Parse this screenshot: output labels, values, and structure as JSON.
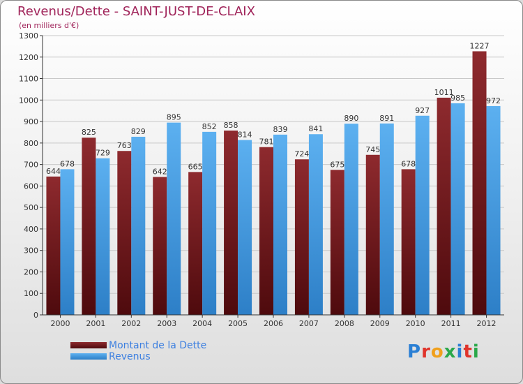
{
  "title": "Revenus/Dette - SAINT-JUST-DE-CLAIX",
  "subtitle": "(en milliers d'€)",
  "logo": "Proxiti",
  "colors": {
    "dette": "#7a1e22",
    "revenus": "#4aa3ea",
    "title": "#a0245a",
    "legend_text": "#3c7fe0"
  },
  "chart_data": {
    "type": "bar",
    "title": "Revenus/Dette - SAINT-JUST-DE-CLAIX",
    "ylabel": "(en milliers d'€)",
    "xlabel": "",
    "ylim": [
      0,
      1300
    ],
    "yticks": [
      0,
      100,
      200,
      300,
      400,
      500,
      600,
      700,
      800,
      900,
      1000,
      1100,
      1200,
      1300
    ],
    "grid": true,
    "legend_position": "bottom-left",
    "categories": [
      "2000",
      "2001",
      "2002",
      "2003",
      "2004",
      "2005",
      "2006",
      "2007",
      "2008",
      "2009",
      "2010",
      "2011",
      "2012"
    ],
    "series": [
      {
        "name": "Montant de la Dette",
        "color": "#7a1e22",
        "values": [
          644,
          825,
          763,
          642,
          665,
          858,
          781,
          724,
          675,
          745,
          678,
          1011,
          1227
        ]
      },
      {
        "name": "Revenus",
        "color": "#4aa3ea",
        "values": [
          678,
          729,
          829,
          895,
          852,
          814,
          839,
          841,
          890,
          891,
          927,
          985,
          972
        ]
      }
    ]
  }
}
